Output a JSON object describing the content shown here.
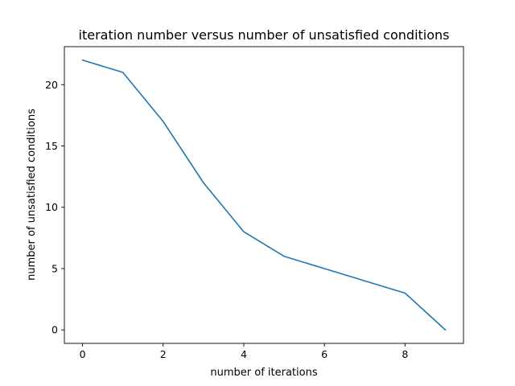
{
  "chart_data": {
    "type": "line",
    "title": "iteration number versus number of unsatisfied conditions",
    "xlabel": "number of iterations",
    "ylabel": "number of unsatisfied conditions",
    "xlim": [
      -0.45,
      9.45
    ],
    "ylim": [
      -1.1,
      23.1
    ],
    "x_ticks": [
      0,
      2,
      4,
      6,
      8
    ],
    "y_ticks": [
      0,
      5,
      10,
      15,
      20
    ],
    "grid": false,
    "series": [
      {
        "color": "#1f77b4",
        "x": [
          0,
          1,
          2,
          3,
          4,
          5,
          6,
          7,
          8,
          9
        ],
        "values": [
          22,
          21,
          17,
          12,
          8,
          6,
          5,
          4,
          3,
          0
        ]
      }
    ]
  }
}
